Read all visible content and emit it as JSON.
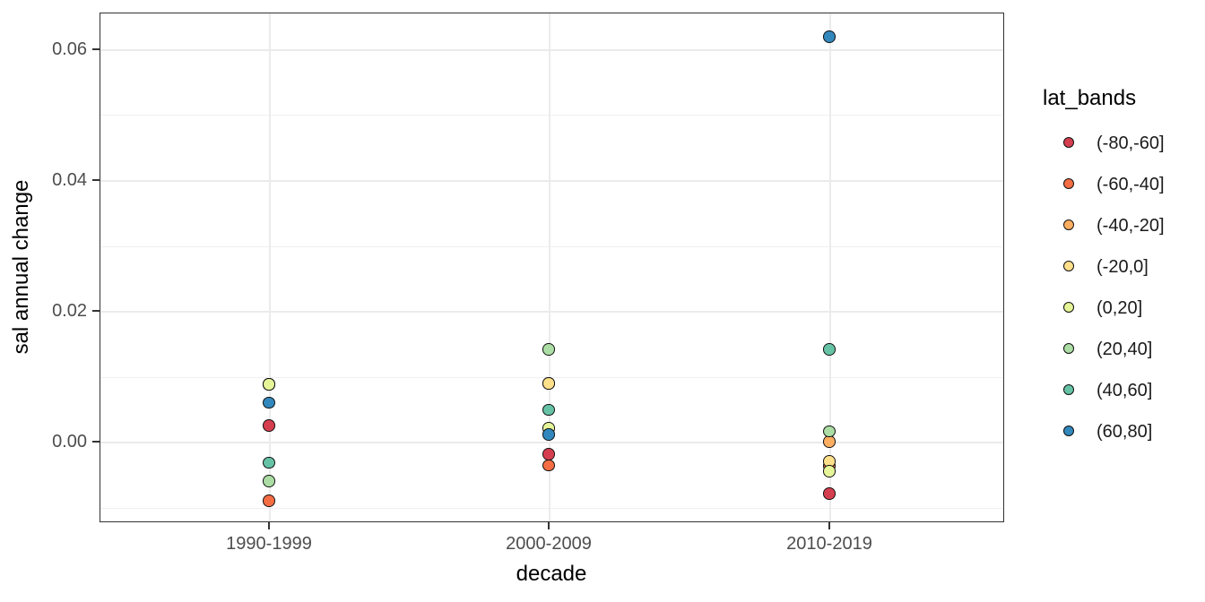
{
  "chart_data": {
    "type": "scatter",
    "title": "",
    "xlabel": "decade",
    "ylabel": "sal annual change",
    "categories": [
      "1990-1999",
      "2000-2009",
      "2010-2019"
    ],
    "series": [
      {
        "name": "(-80,-60]",
        "color": "#D53E4F",
        "values": [
          0.0025,
          -0.0019,
          -0.0079
        ]
      },
      {
        "name": "(-60,-40]",
        "color": "#F46D43",
        "values": [
          -0.009,
          -0.0036,
          -0.0037
        ]
      },
      {
        "name": "(-40,-20]",
        "color": "#FDAE61",
        "values": [
          0.0088,
          0.0089,
          0.0
        ]
      },
      {
        "name": "(-20,0]",
        "color": "#FEE08B",
        "values": [
          0.0088,
          0.0089,
          -0.003
        ]
      },
      {
        "name": "(0,20]",
        "color": "#E6F598",
        "values": [
          0.0088,
          0.0021,
          -0.0045
        ]
      },
      {
        "name": "(20,40]",
        "color": "#ABDDA4",
        "values": [
          -0.006,
          0.0141,
          0.0016
        ]
      },
      {
        "name": "(40,60]",
        "color": "#66C2A5",
        "values": [
          -0.0032,
          0.0049,
          0.0141
        ]
      },
      {
        "name": "(60,80]",
        "color": "#3288BD",
        "values": [
          0.006,
          0.0011,
          0.0619
        ]
      }
    ],
    "yticks": [
      0.0,
      0.02,
      0.04,
      0.06
    ],
    "ytick_labels": [
      "0.00",
      "0.02",
      "0.04",
      "0.06"
    ],
    "minor_yticks": [
      -0.01,
      0.01,
      0.03,
      0.05
    ],
    "ylim": [
      -0.0123,
      0.0656
    ],
    "legend_title": "lat_bands",
    "legend_position": "right",
    "grid": true,
    "colors": {
      "panel_border": "#333333",
      "grid_major": "#ebebeb",
      "tick_label": "#4d4d4d",
      "axis_title": "#000000",
      "point_outline": "#101010"
    }
  }
}
